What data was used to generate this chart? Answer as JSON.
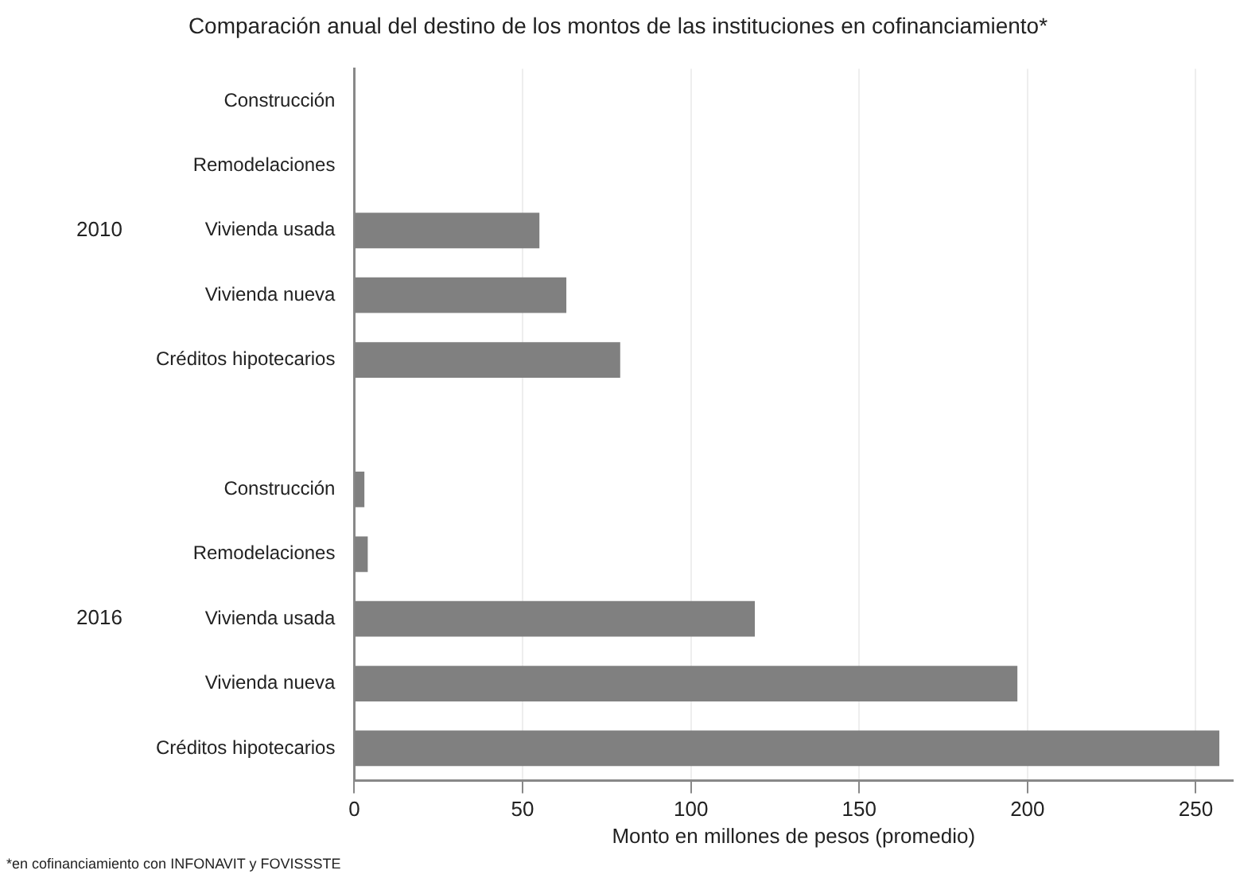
{
  "chart_data": {
    "type": "bar",
    "orientation": "horizontal",
    "title": "Comparación anual del destino de los montos de las instituciones en cofinanciamiento*",
    "xlabel": "Monto en millones de pesos (promedio)",
    "categories": [
      "Construcción",
      "Remodelaciones",
      "Vivienda usada",
      "Vivienda nueva",
      "Créditos hipotecarios",
      null,
      "Construcción",
      "Remodelaciones",
      "Vivienda usada",
      "Vivienda nueva",
      "Créditos hipotecarios"
    ],
    "values": [
      0,
      0,
      55,
      63,
      79,
      null,
      3,
      4,
      119,
      197,
      257
    ],
    "color": "#808080",
    "xlim": [
      0,
      261
    ],
    "xticks": [
      0,
      50,
      100,
      150,
      200,
      250
    ],
    "grid": "x",
    "legend": false,
    "annotations": [
      "2010",
      "2016",
      "*en cofinanciamiento con INFONAVIT y FOVISSSTE"
    ]
  }
}
